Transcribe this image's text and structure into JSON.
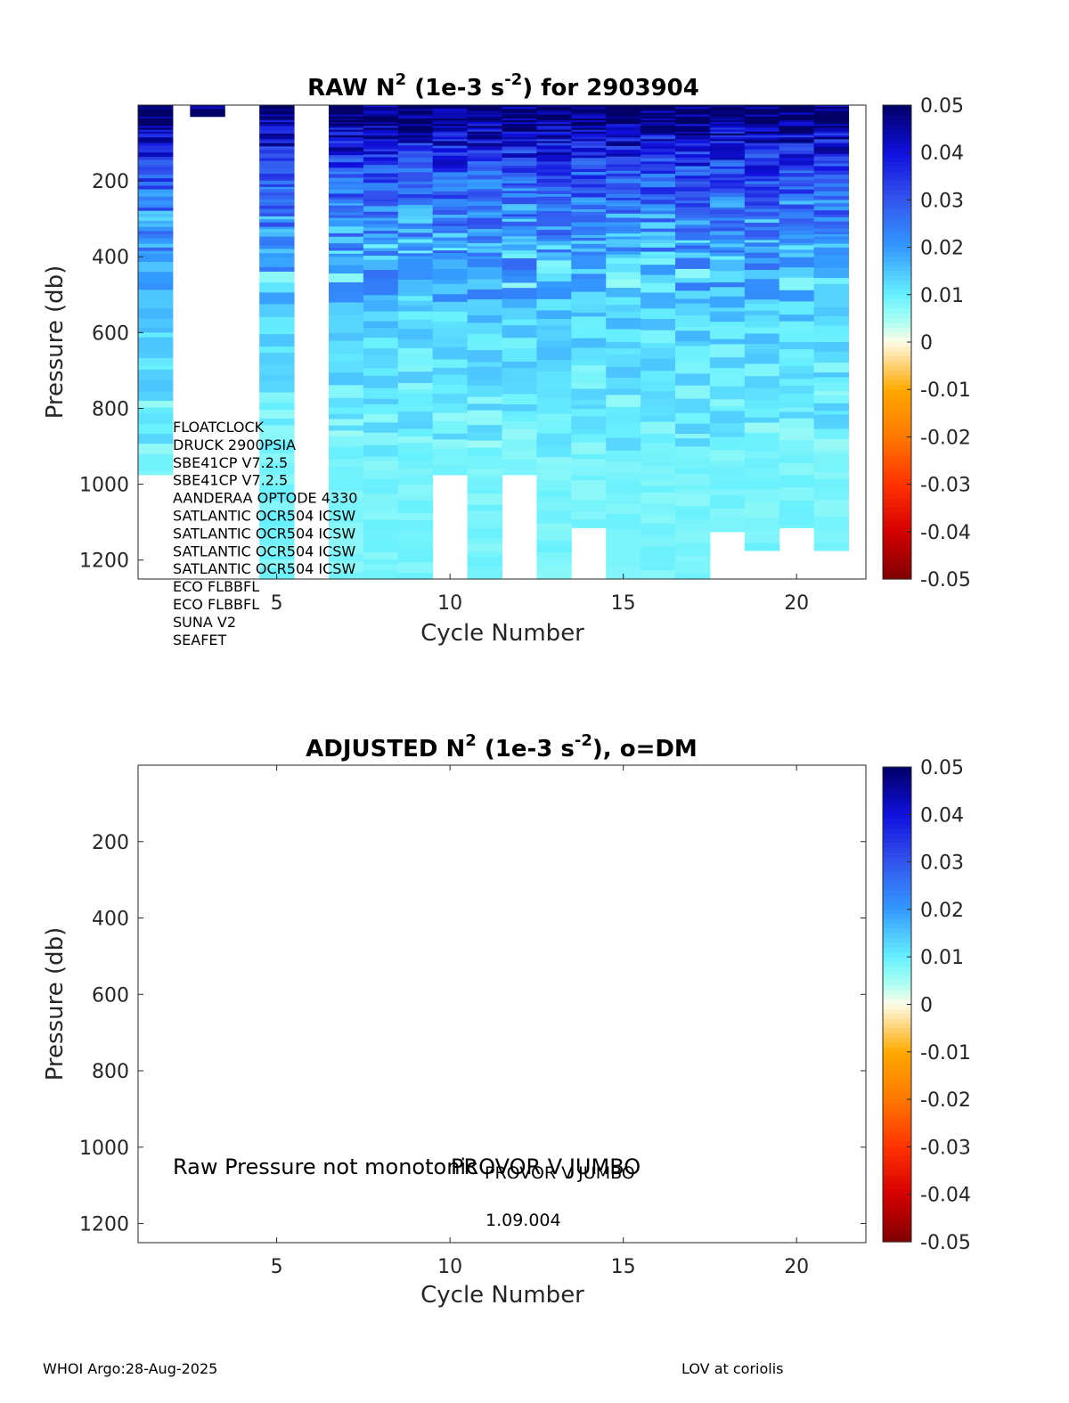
{
  "footer": {
    "left": "WHOI Argo:28-Aug-2025",
    "right": "LOV at coriolis"
  },
  "colormap": {
    "stops": [
      {
        "v": -0.05,
        "color": "#800000"
      },
      {
        "v": -0.04,
        "color": "#d40000"
      },
      {
        "v": -0.03,
        "color": "#ff3300"
      },
      {
        "v": -0.02,
        "color": "#ff7700"
      },
      {
        "v": -0.01,
        "color": "#ffaa00"
      },
      {
        "v": -0.004,
        "color": "#ffd98a"
      },
      {
        "v": 0.0,
        "color": "#fffbe6"
      },
      {
        "v": 0.004,
        "color": "#b0fff0"
      },
      {
        "v": 0.01,
        "color": "#66f0ff"
      },
      {
        "v": 0.02,
        "color": "#3399ff"
      },
      {
        "v": 0.03,
        "color": "#3355ee"
      },
      {
        "v": 0.04,
        "color": "#1010dd"
      },
      {
        "v": 0.05,
        "color": "#000066"
      }
    ]
  },
  "chart_data": [
    {
      "type": "heatmap",
      "title_parts": [
        "RAW N",
        "2",
        " (1e-3 s",
        "-2",
        ") for 2903904"
      ],
      "xlabel": "Cycle Number",
      "ylabel": "Pressure (db)",
      "xlim": [
        1,
        22
      ],
      "ylim": [
        0,
        1250
      ],
      "xticks": [
        5,
        10,
        15,
        20
      ],
      "yticks": [
        200,
        400,
        600,
        800,
        1000,
        1200
      ],
      "clim": [
        -0.05,
        0.05
      ],
      "colorbar_ticks": [
        "0.05",
        "0.04",
        "0.03",
        "0.02",
        "0.01",
        "0",
        "-0.01",
        "-0.02",
        "-0.03",
        "-0.04",
        "-0.05"
      ],
      "cycles": [
        1,
        3,
        5,
        6,
        7,
        8,
        9,
        10,
        11,
        12,
        13,
        14,
        15,
        16,
        17,
        18,
        19,
        20,
        21
      ],
      "cycle_max_depth": [
        975,
        30,
        1250,
        0,
        1250,
        1250,
        1250,
        975,
        1250,
        975,
        1250,
        1115,
        1250,
        1250,
        1250,
        1125,
        1175,
        1115,
        1175
      ],
      "sensors": [
        "FLOATCLOCK",
        "DRUCK 2900PSIA",
        "SBE41CP V7.2.5",
        "SBE41CP V7.2.5",
        "AANDERAA OPTODE 4330",
        "SATLANTIC OCR504 ICSW",
        "SATLANTIC OCR504 ICSW",
        "SATLANTIC OCR504 ICSW",
        "SATLANTIC OCR504 ICSW",
        "ECO FLBBFL",
        "ECO FLBBFL",
        "SUNA V2",
        "SEAFET"
      ]
    },
    {
      "type": "heatmap",
      "title_parts": [
        "ADJUSTED N",
        "2",
        " (1e-3 s",
        "-2",
        "), o=DM"
      ],
      "xlabel": "Cycle Number",
      "ylabel": "Pressure (db)",
      "xlim": [
        1,
        22
      ],
      "ylim": [
        0,
        1250
      ],
      "xticks": [
        5,
        10,
        15,
        20
      ],
      "yticks": [
        200,
        400,
        600,
        800,
        1000,
        1200
      ],
      "clim": [
        -0.05,
        0.05
      ],
      "colorbar_ticks": [
        "0.05",
        "0.04",
        "0.03",
        "0.02",
        "0.01",
        "0",
        "-0.01",
        "-0.02",
        "-0.03",
        "-0.04",
        "-0.05"
      ],
      "cycles": [],
      "annotations": {
        "message": "Raw Pressure not monotonic",
        "platform_1": "PROVOR V JUMBO",
        "platform_2": "PROVOR V JUMBO",
        "firmware": "1.09.004"
      }
    }
  ]
}
